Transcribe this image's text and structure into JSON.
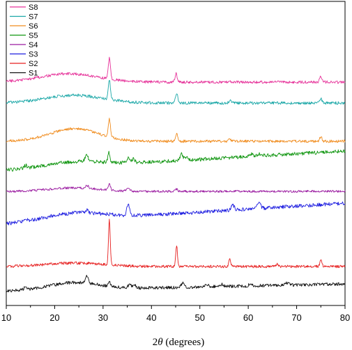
{
  "chart_data": {
    "type": "line",
    "title": "",
    "xlabel_prefix": "2",
    "xlabel_symbol": "θ",
    "xlabel_suffix": " (degrees)",
    "ylabel": "",
    "xlim": [
      10,
      80
    ],
    "x_ticks": [
      "10",
      "20",
      "30",
      "40",
      "50",
      "60",
      "70",
      "80"
    ],
    "grid": false,
    "legend_position": "top-left",
    "y_axis_values": false,
    "series": [
      {
        "name": "S8",
        "color": "#e6339a",
        "baseline": 118,
        "noise": 1.2,
        "slope": 0,
        "seed": 8,
        "hump": [
          [
            23,
            12,
            6
          ]
        ],
        "peaks": [
          [
            31.3,
            30,
            0.22
          ],
          [
            45.1,
            12,
            0.22
          ],
          [
            56.1,
            2,
            0.25
          ],
          [
            75.0,
            8,
            0.25
          ]
        ]
      },
      {
        "name": "S7",
        "color": "#1aa7a7",
        "baseline": 148,
        "noise": 1.3,
        "slope": 0,
        "seed": 7,
        "hump": [
          [
            24,
            11,
            6
          ]
        ],
        "peaks": [
          [
            31.3,
            28,
            0.22
          ],
          [
            45.2,
            14,
            0.22
          ],
          [
            56.2,
            3,
            0.25
          ],
          [
            75.0,
            6,
            0.25
          ]
        ]
      },
      {
        "name": "S6",
        "color": "#f08c1e",
        "baseline": 203,
        "noise": 1.2,
        "slope": 0,
        "seed": 6,
        "hump": [
          [
            24,
            18,
            5
          ]
        ],
        "peaks": [
          [
            31.3,
            26,
            0.22
          ],
          [
            45.2,
            10,
            0.22
          ],
          [
            56.2,
            3,
            0.25
          ],
          [
            75.0,
            6,
            0.25
          ]
        ]
      },
      {
        "name": "S5",
        "color": "#119611",
        "baseline": 245,
        "noise": 1.6,
        "slope": -28,
        "seed": 5,
        "hump": [
          [
            24,
            7,
            6
          ]
        ],
        "peaks": [
          [
            14.0,
            4,
            0.3
          ],
          [
            26.6,
            9,
            0.3
          ],
          [
            31.2,
            14,
            0.22
          ],
          [
            35.2,
            6,
            0.3
          ],
          [
            36.3,
            5,
            0.3
          ],
          [
            46.2,
            9,
            0.3
          ],
          [
            47.2,
            5,
            0.3
          ],
          [
            60.5,
            4,
            0.35
          ],
          [
            62.5,
            3,
            0.35
          ]
        ]
      },
      {
        "name": "S4",
        "color": "#9a1aa0",
        "baseline": 275,
        "noise": 1.0,
        "slope": 0,
        "seed": 4,
        "hump": [
          [
            24,
            5,
            5
          ]
        ],
        "peaks": [
          [
            26.7,
            4,
            0.3
          ],
          [
            31.3,
            9,
            0.22
          ],
          [
            35.2,
            5,
            0.3
          ],
          [
            45.2,
            3,
            0.25
          ]
        ]
      },
      {
        "name": "S3",
        "color": "#1f1fe0",
        "baseline": 322,
        "noise": 1.6,
        "slope": -30,
        "seed": 3,
        "hump": [
          [
            24,
            10,
            6
          ]
        ],
        "peaks": [
          [
            14.0,
            4,
            0.3
          ],
          [
            26.6,
            4,
            0.3
          ],
          [
            35.2,
            16,
            0.3
          ],
          [
            56.8,
            7,
            0.35
          ],
          [
            62.2,
            9,
            0.35
          ]
        ]
      },
      {
        "name": "S2",
        "color": "#e61e1e",
        "baseline": 383,
        "noise": 1.2,
        "slope": 0,
        "seed": 2,
        "hump": [
          [
            24,
            5,
            6
          ]
        ],
        "peaks": [
          [
            31.3,
            65,
            0.18
          ],
          [
            45.2,
            30,
            0.18
          ],
          [
            56.2,
            10,
            0.22
          ],
          [
            66.0,
            3,
            0.3
          ],
          [
            75.0,
            9,
            0.22
          ]
        ]
      },
      {
        "name": "S1",
        "color": "#111111",
        "baseline": 418,
        "noise": 1.4,
        "slope": -10,
        "seed": 1,
        "hump": [
          [
            24,
            10,
            5
          ]
        ],
        "peaks": [
          [
            14.0,
            4,
            0.3
          ],
          [
            26.6,
            10,
            0.3
          ],
          [
            31.3,
            8,
            0.22
          ],
          [
            35.5,
            5,
            0.3
          ],
          [
            36.5,
            5,
            0.3
          ],
          [
            46.5,
            6,
            0.3
          ],
          [
            51.5,
            3,
            0.35
          ],
          [
            54.5,
            3,
            0.35
          ],
          [
            60.5,
            3,
            0.35
          ],
          [
            68.0,
            3,
            0.35
          ]
        ]
      }
    ]
  }
}
